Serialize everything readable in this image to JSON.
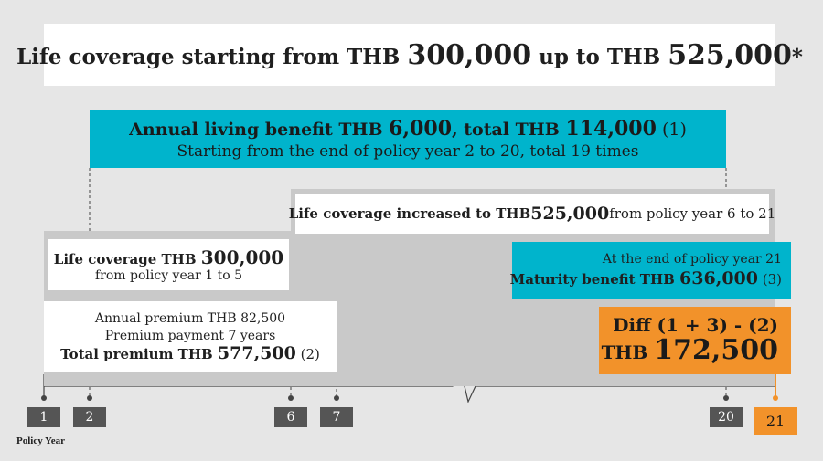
{
  "title": {
    "pre": "Life coverage starting from THB ",
    "v1": "300,000",
    "mid": " up to THB ",
    "v2": "525,000",
    "post": "*"
  },
  "living_benefit": {
    "pre": "Annual living benefit THB ",
    "v1": "6,000",
    "mid": ", total THB ",
    "v2": "114,000",
    "ref": " (1)",
    "line2": "Starting from the end of policy year 2 to 20, total 19 times"
  },
  "coverage_increase": {
    "pre": "Life coverage increased to THB ",
    "value": "525,000",
    "post": " from policy year 6 to 21"
  },
  "coverage_initial": {
    "pre": "Life coverage THB ",
    "value": "300,000",
    "line2": "from policy year 1 to 5"
  },
  "premium": {
    "line1": "Annual premium THB 82,500",
    "line2": "Premium payment 7 years",
    "line3_pre": "Total premium THB ",
    "value": "577,500",
    "ref": "  (2)"
  },
  "maturity": {
    "line1": "At the end of policy year 21",
    "pre": "Maturity benefit THB ",
    "value": "636,000",
    "ref": " (3)"
  },
  "diff": {
    "line1": "Diff (1 + 3) - (2)",
    "prefix": "THB ",
    "value": "172,500"
  },
  "ticks": [
    "1",
    "2",
    "6",
    "7",
    "20",
    "21"
  ],
  "axis_title": "Policy Year",
  "colors": {
    "teal": "#00b4cc",
    "orange": "#f2922a",
    "gray": "#c9c9c9",
    "tick": "#555555"
  }
}
